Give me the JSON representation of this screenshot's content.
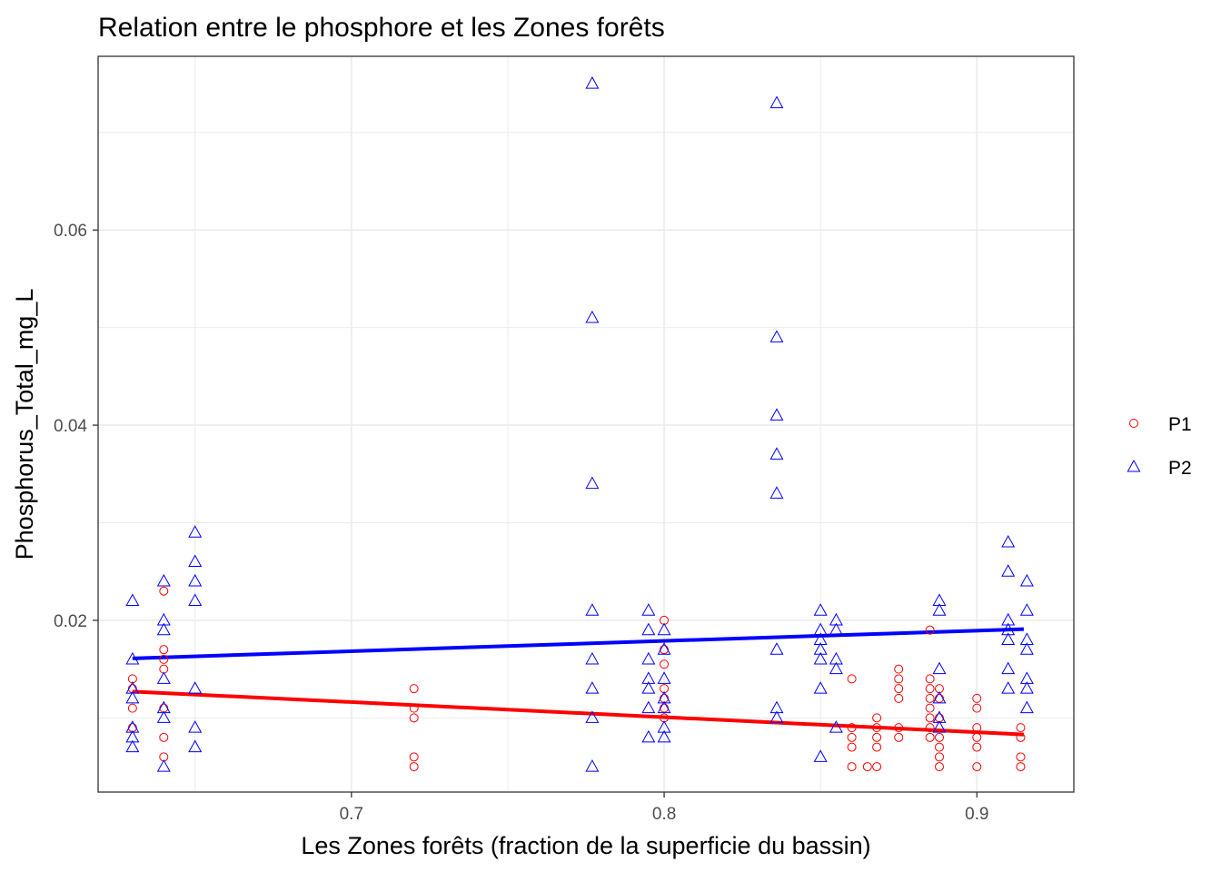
{
  "chart_data": {
    "type": "scatter",
    "title": "Relation entre le phosphore et les Zones forêts",
    "xlabel": "Les Zones forêts (fraction de la superficie du bassin)",
    "ylabel": "Phosphorus_Total_mg_L",
    "xlim": [
      0.619,
      0.931
    ],
    "ylim": [
      0.0024,
      0.0778
    ],
    "x_ticks": [
      0.7,
      0.8,
      0.9
    ],
    "x_tick_labels": [
      "0.7",
      "0.8",
      "0.9"
    ],
    "y_ticks": [
      0.02,
      0.04,
      0.06
    ],
    "y_tick_labels": [
      "0.02",
      "0.04",
      "0.06"
    ],
    "grid": true,
    "legend": {
      "position": "right",
      "entries": [
        "P1",
        "P2"
      ]
    },
    "colors": {
      "P1": "#ff0000",
      "P2": "#0000ff",
      "grid": "#ebebeb",
      "border": "#333333"
    },
    "series": [
      {
        "name": "P1",
        "marker": "circle",
        "color": "#ff0000",
        "trend": [
          [
            0.63,
            0.0127
          ],
          [
            0.915,
            0.0083
          ]
        ],
        "points": [
          [
            0.63,
            0.014
          ],
          [
            0.63,
            0.013
          ],
          [
            0.63,
            0.011
          ],
          [
            0.63,
            0.009
          ],
          [
            0.64,
            0.023
          ],
          [
            0.64,
            0.017
          ],
          [
            0.64,
            0.016
          ],
          [
            0.64,
            0.015
          ],
          [
            0.64,
            0.011
          ],
          [
            0.64,
            0.008
          ],
          [
            0.64,
            0.006
          ],
          [
            0.72,
            0.013
          ],
          [
            0.72,
            0.011
          ],
          [
            0.72,
            0.01
          ],
          [
            0.72,
            0.006
          ],
          [
            0.72,
            0.005
          ],
          [
            0.8,
            0.02
          ],
          [
            0.8,
            0.017
          ],
          [
            0.8,
            0.0155
          ],
          [
            0.8,
            0.013
          ],
          [
            0.8,
            0.012
          ],
          [
            0.8,
            0.011
          ],
          [
            0.8,
            0.01
          ],
          [
            0.86,
            0.014
          ],
          [
            0.86,
            0.009
          ],
          [
            0.86,
            0.008
          ],
          [
            0.86,
            0.007
          ],
          [
            0.86,
            0.005
          ],
          [
            0.865,
            0.005
          ],
          [
            0.868,
            0.01
          ],
          [
            0.868,
            0.009
          ],
          [
            0.868,
            0.008
          ],
          [
            0.868,
            0.007
          ],
          [
            0.868,
            0.005
          ],
          [
            0.875,
            0.015
          ],
          [
            0.875,
            0.014
          ],
          [
            0.875,
            0.013
          ],
          [
            0.875,
            0.012
          ],
          [
            0.875,
            0.009
          ],
          [
            0.875,
            0.008
          ],
          [
            0.885,
            0.019
          ],
          [
            0.885,
            0.014
          ],
          [
            0.885,
            0.013
          ],
          [
            0.885,
            0.012
          ],
          [
            0.885,
            0.011
          ],
          [
            0.885,
            0.01
          ],
          [
            0.885,
            0.009
          ],
          [
            0.885,
            0.008
          ],
          [
            0.888,
            0.013
          ],
          [
            0.888,
            0.012
          ],
          [
            0.888,
            0.01
          ],
          [
            0.888,
            0.008
          ],
          [
            0.888,
            0.007
          ],
          [
            0.888,
            0.006
          ],
          [
            0.888,
            0.005
          ],
          [
            0.9,
            0.012
          ],
          [
            0.9,
            0.011
          ],
          [
            0.9,
            0.009
          ],
          [
            0.9,
            0.008
          ],
          [
            0.9,
            0.007
          ],
          [
            0.9,
            0.005
          ],
          [
            0.914,
            0.009
          ],
          [
            0.914,
            0.008
          ],
          [
            0.914,
            0.006
          ],
          [
            0.914,
            0.005
          ]
        ]
      },
      {
        "name": "P2",
        "marker": "triangle",
        "color": "#0000ff",
        "trend": [
          [
            0.63,
            0.0161
          ],
          [
            0.915,
            0.0191
          ]
        ],
        "points": [
          [
            0.63,
            0.022
          ],
          [
            0.63,
            0.016
          ],
          [
            0.63,
            0.013
          ],
          [
            0.63,
            0.012
          ],
          [
            0.63,
            0.009
          ],
          [
            0.63,
            0.008
          ],
          [
            0.63,
            0.007
          ],
          [
            0.64,
            0.024
          ],
          [
            0.64,
            0.02
          ],
          [
            0.64,
            0.019
          ],
          [
            0.64,
            0.014
          ],
          [
            0.64,
            0.011
          ],
          [
            0.64,
            0.01
          ],
          [
            0.64,
            0.005
          ],
          [
            0.65,
            0.029
          ],
          [
            0.65,
            0.026
          ],
          [
            0.65,
            0.024
          ],
          [
            0.65,
            0.022
          ],
          [
            0.65,
            0.013
          ],
          [
            0.65,
            0.009
          ],
          [
            0.65,
            0.007
          ],
          [
            0.777,
            0.075
          ],
          [
            0.777,
            0.051
          ],
          [
            0.777,
            0.034
          ],
          [
            0.777,
            0.021
          ],
          [
            0.777,
            0.016
          ],
          [
            0.777,
            0.013
          ],
          [
            0.777,
            0.01
          ],
          [
            0.777,
            0.005
          ],
          [
            0.795,
            0.021
          ],
          [
            0.795,
            0.019
          ],
          [
            0.795,
            0.016
          ],
          [
            0.795,
            0.014
          ],
          [
            0.795,
            0.013
          ],
          [
            0.795,
            0.011
          ],
          [
            0.795,
            0.008
          ],
          [
            0.8,
            0.019
          ],
          [
            0.8,
            0.017
          ],
          [
            0.8,
            0.014
          ],
          [
            0.8,
            0.012
          ],
          [
            0.8,
            0.011
          ],
          [
            0.8,
            0.009
          ],
          [
            0.8,
            0.008
          ],
          [
            0.836,
            0.073
          ],
          [
            0.836,
            0.049
          ],
          [
            0.836,
            0.041
          ],
          [
            0.836,
            0.037
          ],
          [
            0.836,
            0.033
          ],
          [
            0.836,
            0.017
          ],
          [
            0.836,
            0.011
          ],
          [
            0.836,
            0.01
          ],
          [
            0.85,
            0.021
          ],
          [
            0.85,
            0.019
          ],
          [
            0.85,
            0.018
          ],
          [
            0.85,
            0.017
          ],
          [
            0.85,
            0.016
          ],
          [
            0.85,
            0.013
          ],
          [
            0.85,
            0.006
          ],
          [
            0.855,
            0.02
          ],
          [
            0.855,
            0.019
          ],
          [
            0.855,
            0.016
          ],
          [
            0.855,
            0.015
          ],
          [
            0.855,
            0.009
          ],
          [
            0.888,
            0.022
          ],
          [
            0.888,
            0.021
          ],
          [
            0.888,
            0.015
          ],
          [
            0.888,
            0.012
          ],
          [
            0.888,
            0.01
          ],
          [
            0.888,
            0.009
          ],
          [
            0.91,
            0.028
          ],
          [
            0.91,
            0.025
          ],
          [
            0.91,
            0.02
          ],
          [
            0.91,
            0.019
          ],
          [
            0.91,
            0.018
          ],
          [
            0.91,
            0.015
          ],
          [
            0.91,
            0.013
          ],
          [
            0.916,
            0.024
          ],
          [
            0.916,
            0.021
          ],
          [
            0.916,
            0.018
          ],
          [
            0.916,
            0.017
          ],
          [
            0.916,
            0.014
          ],
          [
            0.916,
            0.013
          ],
          [
            0.916,
            0.011
          ]
        ]
      }
    ]
  }
}
